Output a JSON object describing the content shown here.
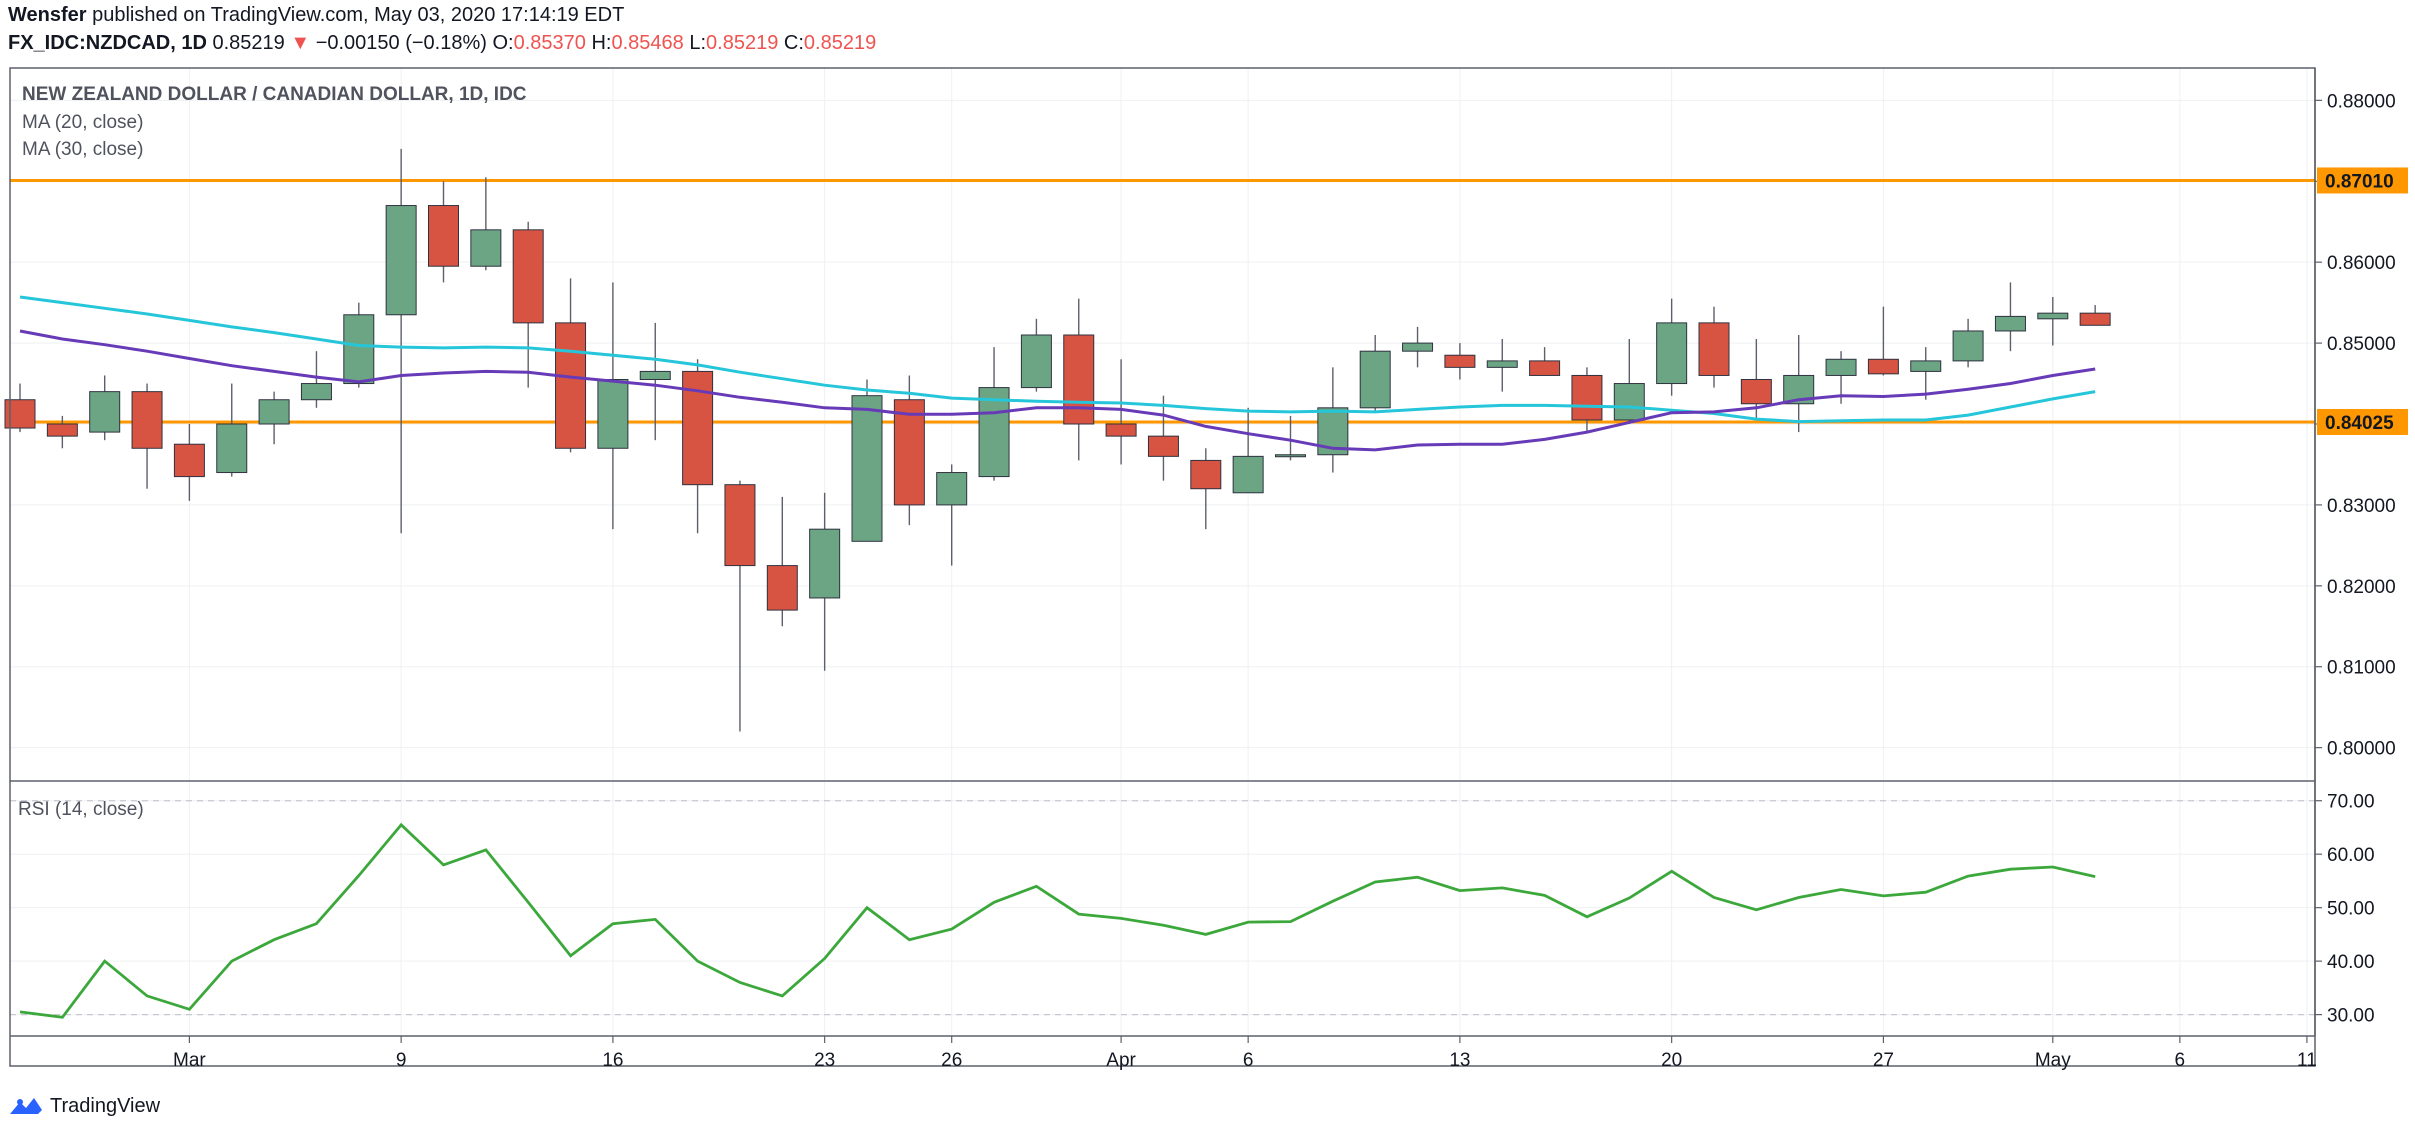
{
  "header": {
    "author": "Wensfer",
    "published_text": "published on TradingView.com, May 03, 2020 17:14:19 EDT",
    "symbol": "FX_IDC:NZDCAD, 1D",
    "last": "0.85219",
    "change": "−0.00150 (−0.18%)",
    "o_label": "O:",
    "o": "0.85370",
    "h_label": "H:",
    "h": "0.85468",
    "l_label": "L:",
    "l": "0.85219",
    "c_label": "C:",
    "c": "0.85219"
  },
  "footer": {
    "brand": "TradingView"
  },
  "colors": {
    "up": "#6ba583",
    "down": "#d75442",
    "wick": "#5d606b",
    "ma20": "#673ab7",
    "ma30": "#26c6da",
    "rsi": "#3ca83c",
    "hline": "#ff9800",
    "grid": "#eef0f3",
    "border": "#5d606b"
  },
  "chart_data": {
    "type": "candlestick",
    "title": "NEW ZEALAND DOLLAR / CANADIAN DOLLAR, 1D, IDC",
    "indicators": [
      "MA (20, close)",
      "MA (30, close)"
    ],
    "ylim": [
      0.796,
      0.884
    ],
    "yticks": [
      "0.88000",
      "0.87000",
      "0.86000",
      "0.85000",
      "0.84000",
      "0.83000",
      "0.82000",
      "0.81000",
      "0.80000"
    ],
    "ytick_values": [
      0.88,
      0.87,
      0.86,
      0.85,
      0.84,
      0.83,
      0.82,
      0.81,
      0.8
    ],
    "horizontal_levels": [
      {
        "value": 0.8701,
        "label": "0.87010"
      },
      {
        "value": 0.84025,
        "label": "0.84025"
      }
    ],
    "x_tick_labels": [
      {
        "i": 4,
        "label": "Mar"
      },
      {
        "i": 9,
        "label": "9"
      },
      {
        "i": 14,
        "label": "16"
      },
      {
        "i": 19,
        "label": "23"
      },
      {
        "i": 22,
        "label": "26"
      },
      {
        "i": 26,
        "label": "Apr"
      },
      {
        "i": 29,
        "label": "6"
      },
      {
        "i": 34,
        "label": "13"
      },
      {
        "i": 39,
        "label": "20"
      },
      {
        "i": 44,
        "label": "27"
      },
      {
        "i": 48,
        "label": "May"
      },
      {
        "i": 51,
        "label": "6"
      },
      {
        "i": 54,
        "label": "11"
      }
    ],
    "candles": [
      {
        "o": 0.843,
        "h": 0.845,
        "l": 0.839,
        "c": 0.8395
      },
      {
        "o": 0.84,
        "h": 0.841,
        "l": 0.837,
        "c": 0.8385
      },
      {
        "o": 0.839,
        "h": 0.846,
        "l": 0.838,
        "c": 0.844
      },
      {
        "o": 0.844,
        "h": 0.845,
        "l": 0.832,
        "c": 0.837
      },
      {
        "o": 0.8375,
        "h": 0.84,
        "l": 0.8305,
        "c": 0.8335
      },
      {
        "o": 0.834,
        "h": 0.845,
        "l": 0.8335,
        "c": 0.84
      },
      {
        "o": 0.84,
        "h": 0.844,
        "l": 0.8375,
        "c": 0.843
      },
      {
        "o": 0.843,
        "h": 0.849,
        "l": 0.842,
        "c": 0.845
      },
      {
        "o": 0.845,
        "h": 0.855,
        "l": 0.8445,
        "c": 0.8535
      },
      {
        "o": 0.8535,
        "h": 0.874,
        "l": 0.8265,
        "c": 0.867
      },
      {
        "o": 0.867,
        "h": 0.87,
        "l": 0.8575,
        "c": 0.8595
      },
      {
        "o": 0.8595,
        "h": 0.8705,
        "l": 0.859,
        "c": 0.864
      },
      {
        "o": 0.864,
        "h": 0.865,
        "l": 0.8445,
        "c": 0.8525
      },
      {
        "o": 0.8525,
        "h": 0.858,
        "l": 0.8365,
        "c": 0.837
      },
      {
        "o": 0.837,
        "h": 0.8575,
        "l": 0.827,
        "c": 0.8455
      },
      {
        "o": 0.8455,
        "h": 0.8525,
        "l": 0.838,
        "c": 0.8465
      },
      {
        "o": 0.8465,
        "h": 0.848,
        "l": 0.8265,
        "c": 0.8325
      },
      {
        "o": 0.8325,
        "h": 0.833,
        "l": 0.802,
        "c": 0.8225
      },
      {
        "o": 0.8225,
        "h": 0.831,
        "l": 0.815,
        "c": 0.817
      },
      {
        "o": 0.8185,
        "h": 0.8315,
        "l": 0.8095,
        "c": 0.827
      },
      {
        "o": 0.8255,
        "h": 0.8455,
        "l": 0.8255,
        "c": 0.8435
      },
      {
        "o": 0.843,
        "h": 0.846,
        "l": 0.8275,
        "c": 0.83
      },
      {
        "o": 0.83,
        "h": 0.835,
        "l": 0.8225,
        "c": 0.834
      },
      {
        "o": 0.8335,
        "h": 0.8495,
        "l": 0.833,
        "c": 0.8445
      },
      {
        "o": 0.8445,
        "h": 0.853,
        "l": 0.844,
        "c": 0.851
      },
      {
        "o": 0.851,
        "h": 0.8555,
        "l": 0.8355,
        "c": 0.84
      },
      {
        "o": 0.84,
        "h": 0.848,
        "l": 0.835,
        "c": 0.8385
      },
      {
        "o": 0.8385,
        "h": 0.8435,
        "l": 0.833,
        "c": 0.836
      },
      {
        "o": 0.8355,
        "h": 0.837,
        "l": 0.827,
        "c": 0.832
      },
      {
        "o": 0.8315,
        "h": 0.842,
        "l": 0.8315,
        "c": 0.836
      },
      {
        "o": 0.836,
        "h": 0.841,
        "l": 0.8355,
        "c": 0.8362
      },
      {
        "o": 0.8362,
        "h": 0.847,
        "l": 0.834,
        "c": 0.842
      },
      {
        "o": 0.842,
        "h": 0.851,
        "l": 0.8415,
        "c": 0.849
      },
      {
        "o": 0.849,
        "h": 0.852,
        "l": 0.847,
        "c": 0.85
      },
      {
        "o": 0.8485,
        "h": 0.85,
        "l": 0.8455,
        "c": 0.847
      },
      {
        "o": 0.847,
        "h": 0.8505,
        "l": 0.844,
        "c": 0.8478
      },
      {
        "o": 0.8478,
        "h": 0.8495,
        "l": 0.846,
        "c": 0.846
      },
      {
        "o": 0.846,
        "h": 0.847,
        "l": 0.839,
        "c": 0.8405
      },
      {
        "o": 0.8405,
        "h": 0.8505,
        "l": 0.84,
        "c": 0.845
      },
      {
        "o": 0.845,
        "h": 0.8555,
        "l": 0.8435,
        "c": 0.8525
      },
      {
        "o": 0.8525,
        "h": 0.8545,
        "l": 0.8445,
        "c": 0.846
      },
      {
        "o": 0.8455,
        "h": 0.8505,
        "l": 0.8405,
        "c": 0.8425
      },
      {
        "o": 0.8425,
        "h": 0.851,
        "l": 0.839,
        "c": 0.846
      },
      {
        "o": 0.846,
        "h": 0.849,
        "l": 0.8425,
        "c": 0.848
      },
      {
        "o": 0.848,
        "h": 0.8545,
        "l": 0.846,
        "c": 0.8462
      },
      {
        "o": 0.8465,
        "h": 0.8495,
        "l": 0.843,
        "c": 0.8478
      },
      {
        "o": 0.8478,
        "h": 0.853,
        "l": 0.847,
        "c": 0.8515
      },
      {
        "o": 0.8515,
        "h": 0.8575,
        "l": 0.849,
        "c": 0.8533
      },
      {
        "o": 0.853,
        "h": 0.8557,
        "l": 0.8497,
        "c": 0.8537
      },
      {
        "o": 0.8537,
        "h": 0.8547,
        "l": 0.8522,
        "c": 0.8522
      }
    ],
    "ma20": [
      0.8515,
      0.8505,
      0.8498,
      0.849,
      0.8481,
      0.8472,
      0.8465,
      0.8458,
      0.8452,
      0.846,
      0.8463,
      0.8465,
      0.8464,
      0.8458,
      0.8453,
      0.8448,
      0.8441,
      0.8433,
      0.8427,
      0.842,
      0.8418,
      0.8412,
      0.8412,
      0.8414,
      0.842,
      0.842,
      0.8418,
      0.8411,
      0.8397,
      0.8388,
      0.838,
      0.837,
      0.8368,
      0.8374,
      0.8375,
      0.8375,
      0.8381,
      0.839,
      0.8402,
      0.8414,
      0.8415,
      0.842,
      0.843,
      0.8435,
      0.8434,
      0.8437,
      0.8443,
      0.845,
      0.846,
      0.8468
    ],
    "ma30": [
      0.8557,
      0.855,
      0.8543,
      0.8536,
      0.8528,
      0.852,
      0.8513,
      0.8505,
      0.8497,
      0.8495,
      0.8494,
      0.8495,
      0.8494,
      0.849,
      0.8485,
      0.848,
      0.8473,
      0.8464,
      0.8456,
      0.8448,
      0.8442,
      0.8438,
      0.8432,
      0.843,
      0.8428,
      0.8427,
      0.8426,
      0.8423,
      0.8419,
      0.8416,
      0.8415,
      0.8416,
      0.8415,
      0.8418,
      0.8421,
      0.8423,
      0.8423,
      0.8422,
      0.8421,
      0.8417,
      0.8413,
      0.8406,
      0.8403,
      0.8404,
      0.8405,
      0.8405,
      0.8411,
      0.8421,
      0.8431,
      0.844
    ],
    "rsi": {
      "label": "RSI (14, close)",
      "ylim": [
        26.0,
        73.5
      ],
      "yticks": [
        "70.00",
        "60.00",
        "50.00",
        "40.00",
        "30.00"
      ],
      "ytick_values": [
        70,
        60,
        50,
        40,
        30
      ],
      "bands": [
        70,
        30
      ],
      "values": [
        30.5,
        29.5,
        40.0,
        33.5,
        31.0,
        40.0,
        44.0,
        47.0,
        56.0,
        65.5,
        58.0,
        60.8,
        51.0,
        41.0,
        47.0,
        47.8,
        40.0,
        36.0,
        33.5,
        40.5,
        50.0,
        44.0,
        46.0,
        51.0,
        54.0,
        48.8,
        48.0,
        46.7,
        45.0,
        47.3,
        47.4,
        51.2,
        54.8,
        55.7,
        53.2,
        53.7,
        52.3,
        48.3,
        51.8,
        56.8,
        51.9,
        49.6,
        51.9,
        53.4,
        52.2,
        52.9,
        55.9,
        57.2,
        57.6,
        55.8
      ]
    }
  }
}
